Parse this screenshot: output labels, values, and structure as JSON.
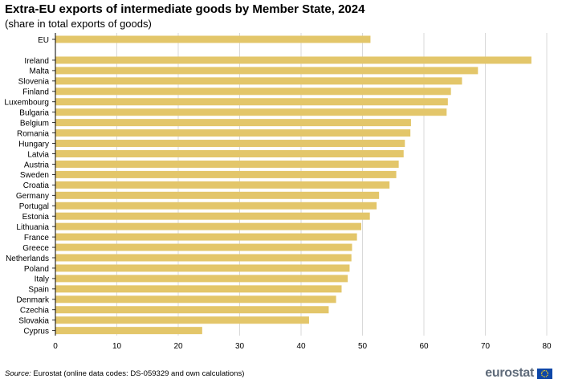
{
  "chart_data": {
    "type": "bar",
    "orientation": "horizontal",
    "title": "Extra-EU exports of intermediate goods by Member State, 2024",
    "subtitle": "(share in total exports of goods)",
    "xlabel": "",
    "ylabel": "",
    "xlim": [
      0,
      80
    ],
    "xticks": [
      0,
      10,
      20,
      30,
      40,
      50,
      60,
      70,
      80
    ],
    "grid": true,
    "legend": "none",
    "bar_color": "#e3c66a",
    "grid_color": "#d9d9d9",
    "categories": [
      "EU",
      "Ireland",
      "Malta",
      "Slovenia",
      "Finland",
      "Luxembourg",
      "Bulgaria",
      "Belgium",
      "Romania",
      "Hungary",
      "Latvia",
      "Austria",
      "Sweden",
      "Croatia",
      "Germany",
      "Portugal",
      "Estonia",
      "Lithuania",
      "France",
      "Greece",
      "Netherlands",
      "Poland",
      "Italy",
      "Spain",
      "Denmark",
      "Czechia",
      "Slovakia",
      "Cyprus"
    ],
    "values": [
      51.3,
      77.5,
      68.8,
      66.2,
      64.4,
      63.9,
      63.7,
      57.9,
      57.8,
      56.9,
      56.7,
      55.9,
      55.5,
      54.4,
      52.7,
      52.3,
      51.2,
      49.8,
      49.1,
      48.3,
      48.2,
      47.9,
      47.6,
      46.6,
      45.7,
      44.5,
      41.3,
      23.9
    ]
  },
  "footer": {
    "source_label": "Source:",
    "source_text": " Eurostat (online data codes: DS-059329 and own calculations)",
    "logo_text": "eurostat"
  }
}
